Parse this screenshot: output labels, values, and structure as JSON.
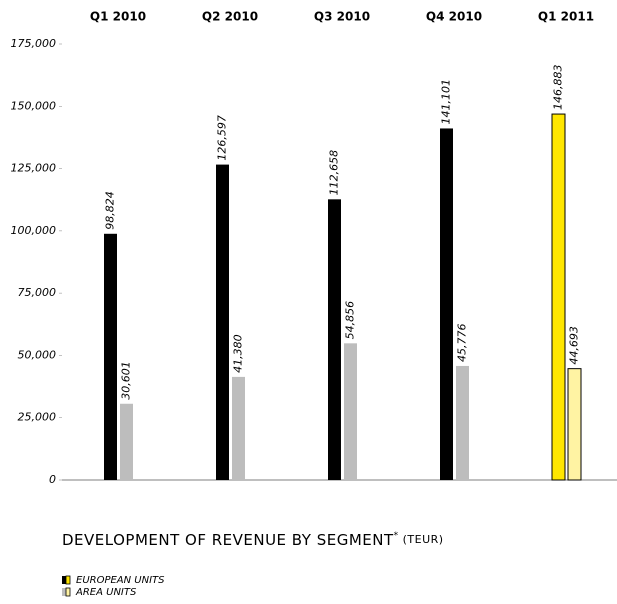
{
  "chart_data": {
    "type": "bar",
    "title": "DEVELOPMENT OF REVENUE BY SEGMENT",
    "title_mark": "*",
    "unit": "(TEUR)",
    "categories": [
      "Q1 2010",
      "Q2 2010",
      "Q3 2010",
      "Q4 2010",
      "Q1 2011"
    ],
    "series": [
      {
        "name": "EUROPEAN UNITS",
        "color": "#000000",
        "colors": [
          "#000000",
          "#000000",
          "#000000",
          "#000000",
          "#ffe600"
        ],
        "values": [
          98824,
          126597,
          112658,
          141101,
          146883
        ],
        "value_labels": [
          "98,824",
          "126,597",
          "112,658",
          "141,101",
          "146,883"
        ]
      },
      {
        "name": "AREA UNITS",
        "color": "#bdbdbd",
        "colors": [
          "#bdbdbd",
          "#bdbdbd",
          "#bdbdbd",
          "#bdbdbd",
          "#fff3a3"
        ],
        "values": [
          30601,
          41380,
          54856,
          45776,
          44693
        ],
        "value_labels": [
          "30,601",
          "41,380",
          "54,856",
          "45,776",
          "44,693"
        ]
      }
    ],
    "ylim": [
      0,
      175000
    ],
    "yticks": [
      0,
      {
        "value": 25000,
        "label": "25,000"
      },
      {
        "value": 50000,
        "label": "50,000"
      },
      {
        "value": 75000,
        "label": "75,000"
      },
      {
        "value": 100000,
        "label": "100,000"
      },
      {
        "value": 125000,
        "label": "125,000"
      },
      {
        "value": 150000,
        "label": "150,000"
      },
      {
        "value": 175000,
        "label": "175,000"
      }
    ],
    "legend": "bottom-left"
  }
}
